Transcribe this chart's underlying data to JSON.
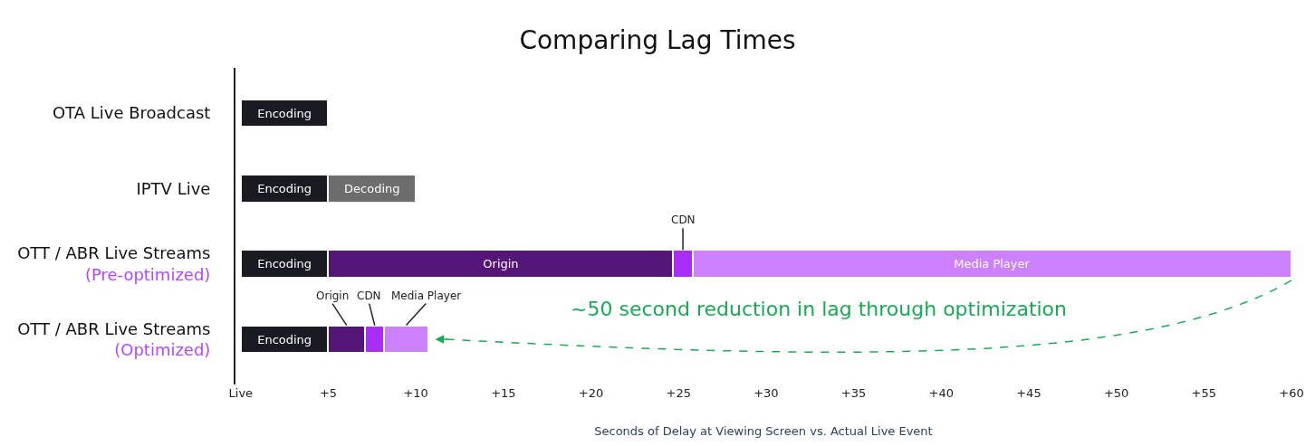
{
  "chart_data": {
    "type": "bar",
    "orientation": "horizontal",
    "stacked": true,
    "title": "Comparing Lag Times",
    "xlabel": "Seconds of Delay at Viewing Screen vs. Actual Live Event",
    "categories": [
      "OTA Live Broadcast",
      "IPTV Live",
      "OTT / ABR Live Streams\n(Pre-optimized)",
      "OTT / ABR Live Streams\n(Optimized)"
    ],
    "series": [
      {
        "name": "Encoding",
        "color": "#1a1a22",
        "values": [
          5,
          5,
          5,
          5
        ]
      },
      {
        "name": "Decoding",
        "color": "#6d6d6d",
        "values": [
          null,
          5,
          null,
          null
        ]
      },
      {
        "name": "Origin",
        "color": "#561677",
        "values": [
          null,
          null,
          19.7,
          2.1
        ]
      },
      {
        "name": "CDN",
        "color": "#a92ef5",
        "values": [
          null,
          null,
          1.1,
          1.1
        ]
      },
      {
        "name": "Media Player",
        "color": "#cc80fc",
        "values": [
          null,
          null,
          34.2,
          2.5
        ]
      }
    ],
    "xlim": [
      -0.3,
      60
    ],
    "xticks": [
      {
        "value": 0,
        "label": "Live"
      },
      {
        "value": 5,
        "label": "+5"
      },
      {
        "value": 10,
        "label": "+10"
      },
      {
        "value": 15,
        "label": "+15"
      },
      {
        "value": 20,
        "label": "+20"
      },
      {
        "value": 25,
        "label": "+25"
      },
      {
        "value": 30,
        "label": "+30"
      },
      {
        "value": 35,
        "label": "+35"
      },
      {
        "value": 40,
        "label": "+40"
      },
      {
        "value": 45,
        "label": "+45"
      },
      {
        "value": 50,
        "label": "+50"
      },
      {
        "value": 55,
        "label": "+55"
      },
      {
        "value": 60,
        "label": "+60"
      }
    ],
    "legend": false,
    "annotations": [
      "~50 second reduction in lag through optimization"
    ]
  }
}
